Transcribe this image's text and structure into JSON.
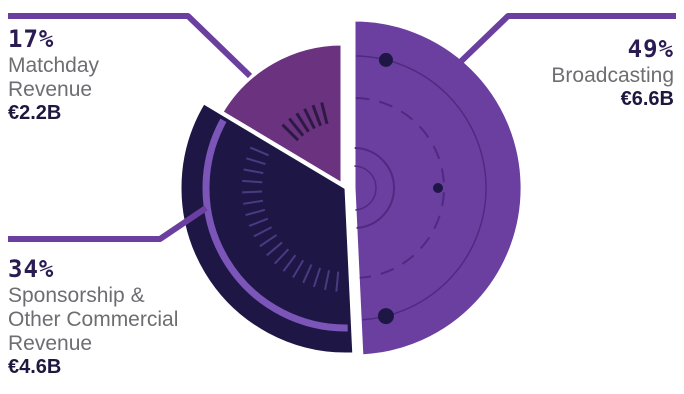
{
  "chart_data": {
    "type": "pie",
    "title": "",
    "slices": [
      {
        "label": "Broadcasting",
        "percent": "49%",
        "value": 6.6,
        "value_label": "€6.6B",
        "color": "#6a3fa0"
      },
      {
        "label": "Sponsorship & Other Commercial Revenue",
        "percent": "34%",
        "value": 4.6,
        "value_label": "€4.6B",
        "color": "#1e1745"
      },
      {
        "label": "Matchday Revenue",
        "percent": "17%",
        "value": 2.2,
        "value_label": "€2.2B",
        "color": "#6b3280"
      }
    ]
  },
  "labels": {
    "matchday": {
      "pct": "17%",
      "line1": "Matchday",
      "line2": "Revenue",
      "amount": "€2.2B"
    },
    "broadcasting": {
      "pct": "49%",
      "line1": "Broadcasting",
      "amount": "€6.6B"
    },
    "sponsorship": {
      "pct": "34%",
      "line1": "Sponsorship &",
      "line2": "Other Commercial",
      "line3": "Revenue",
      "amount": "€4.6B"
    }
  },
  "colors": {
    "broadcasting": "#6a3fa0",
    "sponsorship": "#1e1745",
    "matchday": "#6b3280",
    "leader_line": "#6a3fa0",
    "accent_ring": "#7b55b8"
  }
}
